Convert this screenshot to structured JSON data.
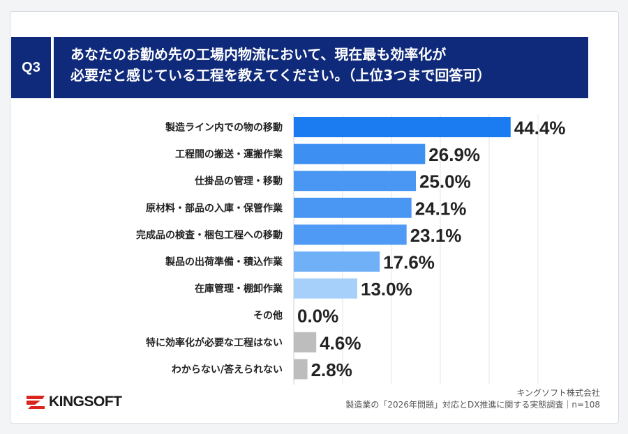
{
  "question": {
    "badge": "Q3",
    "line1": "あなたのお勤め先の工場内物流において、現在最も効率化が",
    "line2": "必要だと感じている工程を教えてください。（上位3つまで回答可）"
  },
  "chart_data": {
    "type": "bar",
    "orientation": "horizontal",
    "categories": [
      "製造ライン内での物の移動",
      "工程間の搬送・運搬作業",
      "仕掛品の管理・移動",
      "原材料・部品の入庫・保管作業",
      "完成品の検査・梱包工程への移動",
      "製品の出荷準備・積込作業",
      "在庫管理・棚卸作業",
      "その他",
      "特に効率化が必要な工程はない",
      "わからない/答えられない"
    ],
    "values": [
      44.4,
      26.9,
      25.0,
      24.1,
      23.1,
      17.6,
      13.0,
      0.0,
      4.6,
      2.8
    ],
    "value_labels": [
      "44.4%",
      "26.9%",
      "25.0%",
      "24.1%",
      "23.1%",
      "17.6%",
      "13.0%",
      "0.0%",
      "4.6%",
      "2.8%"
    ],
    "colors": [
      "#1a7cf0",
      "#3d8ff2",
      "#4a97f3",
      "#4a97f3",
      "#4e9af4",
      "#6fb0f7",
      "#a6cffa",
      "#bdbdbd",
      "#bdbdbd",
      "#bdbdbd"
    ],
    "xlim": [
      0,
      50
    ],
    "grid": true
  },
  "logo": {
    "text": "KINGSOFT",
    "mark_color": "#d9251d"
  },
  "source": {
    "line1": "キングソフト株式会社",
    "line2": "製造業の「2026年問題」対応とDX推進に関する実態調査｜n=108"
  }
}
